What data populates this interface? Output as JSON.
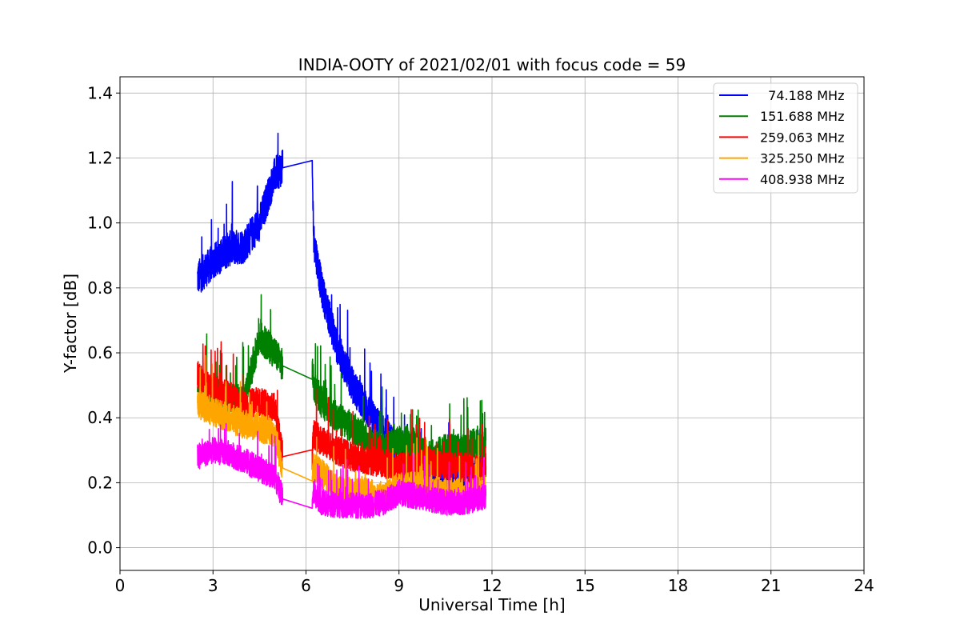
{
  "chart_data": {
    "type": "line",
    "title": "INDIA-OOTY of 2021/02/01 with focus code = 59",
    "xlabel": "Universal Time [h]",
    "ylabel": "Y-factor [dB]",
    "xlim": [
      0,
      24
    ],
    "ylim": [
      -0.07,
      1.45
    ],
    "xticks": [
      0,
      3,
      6,
      9,
      12,
      15,
      18,
      21,
      24
    ],
    "xtick_labels": [
      "0",
      "3",
      "6",
      "9",
      "12",
      "15",
      "18",
      "21",
      "24"
    ],
    "yticks": [
      0.0,
      0.2,
      0.4,
      0.6,
      0.8,
      1.0,
      1.2,
      1.4
    ],
    "ytick_labels": [
      "0.0",
      "0.2",
      "0.4",
      "0.6",
      "0.8",
      "1.0",
      "1.2",
      "1.4"
    ],
    "grid": true,
    "legend_position": "top-right",
    "series": [
      {
        "name": "  74.188 MHz",
        "color": "#0000ff",
        "noise": 0.055,
        "x": [
          2.5,
          3.0,
          3.5,
          4.0,
          4.5,
          5.0,
          5.25,
          6.2,
          6.25,
          6.5,
          7.0,
          7.5,
          8.0,
          8.5,
          9.0,
          9.5,
          10.0,
          10.5,
          11.0,
          11.5,
          11.8
        ],
        "y": [
          0.83,
          0.88,
          0.92,
          0.93,
          1.0,
          1.15,
          1.17,
          1.17,
          0.95,
          0.8,
          0.62,
          0.5,
          0.42,
          0.35,
          0.3,
          0.3,
          0.25,
          0.22,
          0.2,
          0.22,
          0.25
        ]
      },
      {
        "name": "151.688 MHz",
        "color": "#008000",
        "noise": 0.05,
        "x": [
          2.5,
          3.0,
          3.5,
          4.0,
          4.5,
          5.0,
          5.25,
          6.2,
          6.25,
          6.5,
          7.0,
          7.5,
          8.0,
          8.5,
          9.0,
          9.5,
          10.0,
          10.5,
          11.0,
          11.5,
          11.8
        ],
        "y": [
          0.5,
          0.48,
          0.46,
          0.45,
          0.65,
          0.6,
          0.56,
          0.55,
          0.5,
          0.45,
          0.4,
          0.37,
          0.33,
          0.3,
          0.33,
          0.32,
          0.28,
          0.3,
          0.3,
          0.32,
          0.33
        ]
      },
      {
        "name": "259.063 MHz",
        "color": "#ff0000",
        "noise": 0.045,
        "x": [
          2.5,
          3.0,
          3.5,
          4.0,
          4.5,
          5.0,
          5.25,
          6.2,
          6.25,
          6.5,
          7.0,
          7.5,
          8.0,
          8.5,
          9.0,
          9.5,
          10.0,
          10.5,
          11.0,
          11.5,
          11.8
        ],
        "y": [
          0.53,
          0.48,
          0.47,
          0.44,
          0.45,
          0.43,
          0.28,
          0.28,
          0.35,
          0.33,
          0.3,
          0.28,
          0.27,
          0.26,
          0.25,
          0.25,
          0.26,
          0.25,
          0.25,
          0.24,
          0.24
        ]
      },
      {
        "name": "325.250 MHz",
        "color": "#ffa500",
        "noise": 0.045,
        "x": [
          2.5,
          3.0,
          3.5,
          4.0,
          4.5,
          5.0,
          5.25,
          6.2,
          6.25,
          6.5,
          7.0,
          7.5,
          8.0,
          8.5,
          9.0,
          9.5,
          10.0,
          10.5,
          11.0,
          11.5,
          11.8
        ],
        "y": [
          0.44,
          0.42,
          0.4,
          0.38,
          0.37,
          0.35,
          0.245,
          0.24,
          0.25,
          0.23,
          0.18,
          0.17,
          0.17,
          0.15,
          0.19,
          0.19,
          0.18,
          0.17,
          0.17,
          0.17,
          0.18
        ]
      },
      {
        "name": "408.938 MHz",
        "color": "#ff00ff",
        "noise": 0.04,
        "x": [
          2.5,
          3.0,
          3.5,
          4.0,
          4.5,
          5.0,
          5.25,
          6.2,
          6.25,
          6.5,
          7.0,
          7.5,
          8.0,
          8.5,
          9.0,
          9.5,
          10.0,
          10.5,
          11.0,
          11.5,
          11.8
        ],
        "y": [
          0.28,
          0.3,
          0.29,
          0.27,
          0.24,
          0.22,
          0.15,
          0.155,
          0.17,
          0.14,
          0.13,
          0.13,
          0.13,
          0.14,
          0.17,
          0.16,
          0.15,
          0.14,
          0.14,
          0.15,
          0.16
        ]
      }
    ]
  }
}
